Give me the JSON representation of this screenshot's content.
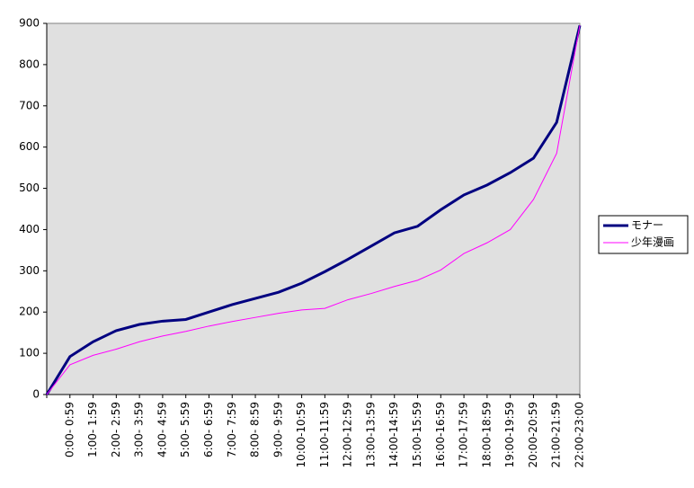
{
  "chart_data": {
    "type": "line",
    "categories": [
      null,
      "0:00- 0:59",
      "1:00- 1:59",
      "2:00- 2:59",
      "3:00- 3:59",
      "4:00- 4:59",
      "5:00- 5:59",
      "6:00- 6:59",
      "7:00- 7:59",
      "8:00- 8:59",
      "9:00- 9:59",
      "10:00-10:59",
      "11:00-11:59",
      "12:00-12:59",
      "13:00-13:59",
      "14:00-14:59",
      "15:00-15:59",
      "16:00-16:59",
      "17:00-17:59",
      "18:00-18:59",
      "19:00-19:59",
      "20:00-20:59",
      "21:00-21:59",
      "22:00-23:00"
    ],
    "series": [
      {
        "name": "モナー",
        "color": "#000080",
        "width": 3,
        "values": [
          0,
          92,
          128,
          155,
          170,
          178,
          182,
          200,
          218,
          233,
          248,
          270,
          298,
          328,
          360,
          392,
          408,
          448,
          484,
          508,
          538,
          573,
          660,
          895
        ]
      },
      {
        "name": "少年漫画",
        "color": "#ff00ff",
        "width": 1,
        "values": [
          0,
          72,
          95,
          110,
          128,
          142,
          153,
          166,
          177,
          187,
          197,
          205,
          209,
          230,
          245,
          262,
          277,
          302,
          342,
          368,
          400,
          473,
          585,
          895
        ]
      }
    ],
    "ylim": [
      0,
      900
    ],
    "yticks": [
      0,
      100,
      200,
      300,
      400,
      500,
      600,
      700,
      800,
      900
    ],
    "grid": false,
    "legend": "right",
    "background": "#e0e0e0"
  }
}
